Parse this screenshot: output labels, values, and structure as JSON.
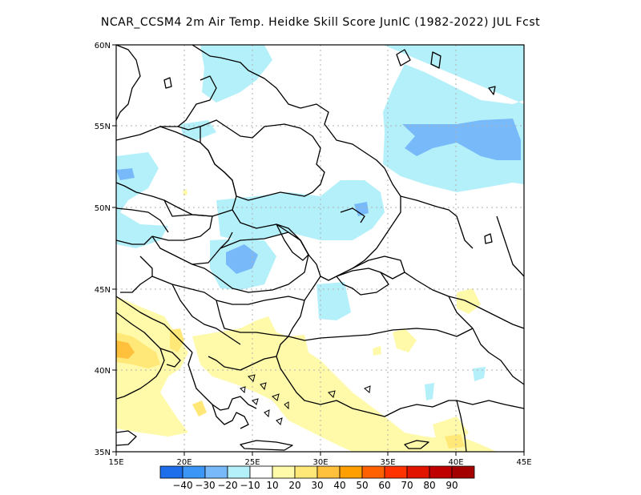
{
  "title": "NCAR_CCSM4  2m Air Temp. Heidke Skill Score JunIC (1982-2022) JUL Fcst",
  "map": {
    "lat_ticks": [
      {
        "label": "60N",
        "value": 60
      },
      {
        "label": "55N",
        "value": 55
      },
      {
        "label": "50N",
        "value": 50
      },
      {
        "label": "45N",
        "value": 45
      },
      {
        "label": "40N",
        "value": 40
      },
      {
        "label": "35N",
        "value": 35
      }
    ],
    "lon_ticks": [
      {
        "label": "15E",
        "value": 15
      },
      {
        "label": "20E",
        "value": 20
      },
      {
        "label": "25E",
        "value": 25
      },
      {
        "label": "30E",
        "value": 30
      },
      {
        "label": "35E",
        "value": 35
      },
      {
        "label": "40E",
        "value": 40
      },
      {
        "label": "45E",
        "value": 45
      }
    ],
    "lat_range": [
      35,
      60
    ],
    "lon_range": [
      15,
      45
    ]
  },
  "colorbar": {
    "labels": [
      "-40",
      "-30",
      "-20",
      "-10",
      "10",
      "20",
      "30",
      "40",
      "50",
      "60",
      "70",
      "80",
      "90"
    ],
    "colors": [
      "#1e6eeb",
      "#3c96f5",
      "#78b9fa",
      "#b4f0fa",
      "#ffffff",
      "#fffaaa",
      "#ffe878",
      "#ffc03c",
      "#ffa000",
      "#ff6000",
      "#ff3200",
      "#e11400",
      "#c00000",
      "#a50000"
    ]
  },
  "colors": {
    "light_blue": "#b4f0fa",
    "blue": "#78b9fa",
    "pale_yellow": "#fffaaa",
    "yellow": "#ffe878",
    "orange": "#ffc03c"
  }
}
